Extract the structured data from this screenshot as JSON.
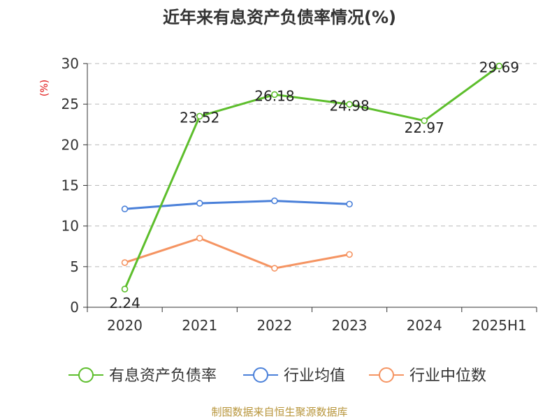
{
  "chart_data": {
    "type": "line",
    "title": "近年来有息资产负债率情况(%)",
    "ylabel": "(%)",
    "categories": [
      "2020",
      "2021",
      "2022",
      "2023",
      "2024",
      "2025H1"
    ],
    "ylim": [
      0,
      30
    ],
    "yticks": [
      "0",
      "5",
      "10",
      "15",
      "20",
      "25",
      "30"
    ],
    "grid": true,
    "legend_position": "bottom",
    "series": [
      {
        "name": "有息资产负债率",
        "color": "#5dbe2c",
        "values": [
          2.24,
          23.52,
          26.18,
          24.98,
          22.97,
          29.69
        ],
        "labels": [
          "2.24",
          "23.52",
          "26.18",
          "24.98",
          "22.97",
          "29.69"
        ]
      },
      {
        "name": "行业均值",
        "color": "#4a80d9",
        "values": [
          12.1,
          12.8,
          13.1,
          12.7,
          null,
          null
        ]
      },
      {
        "name": "行业中位数",
        "color": "#f59462",
        "values": [
          5.5,
          8.5,
          4.8,
          6.5,
          null,
          null
        ]
      }
    ]
  },
  "footer": {
    "source": "制图数据来自恒生聚源数据库"
  }
}
